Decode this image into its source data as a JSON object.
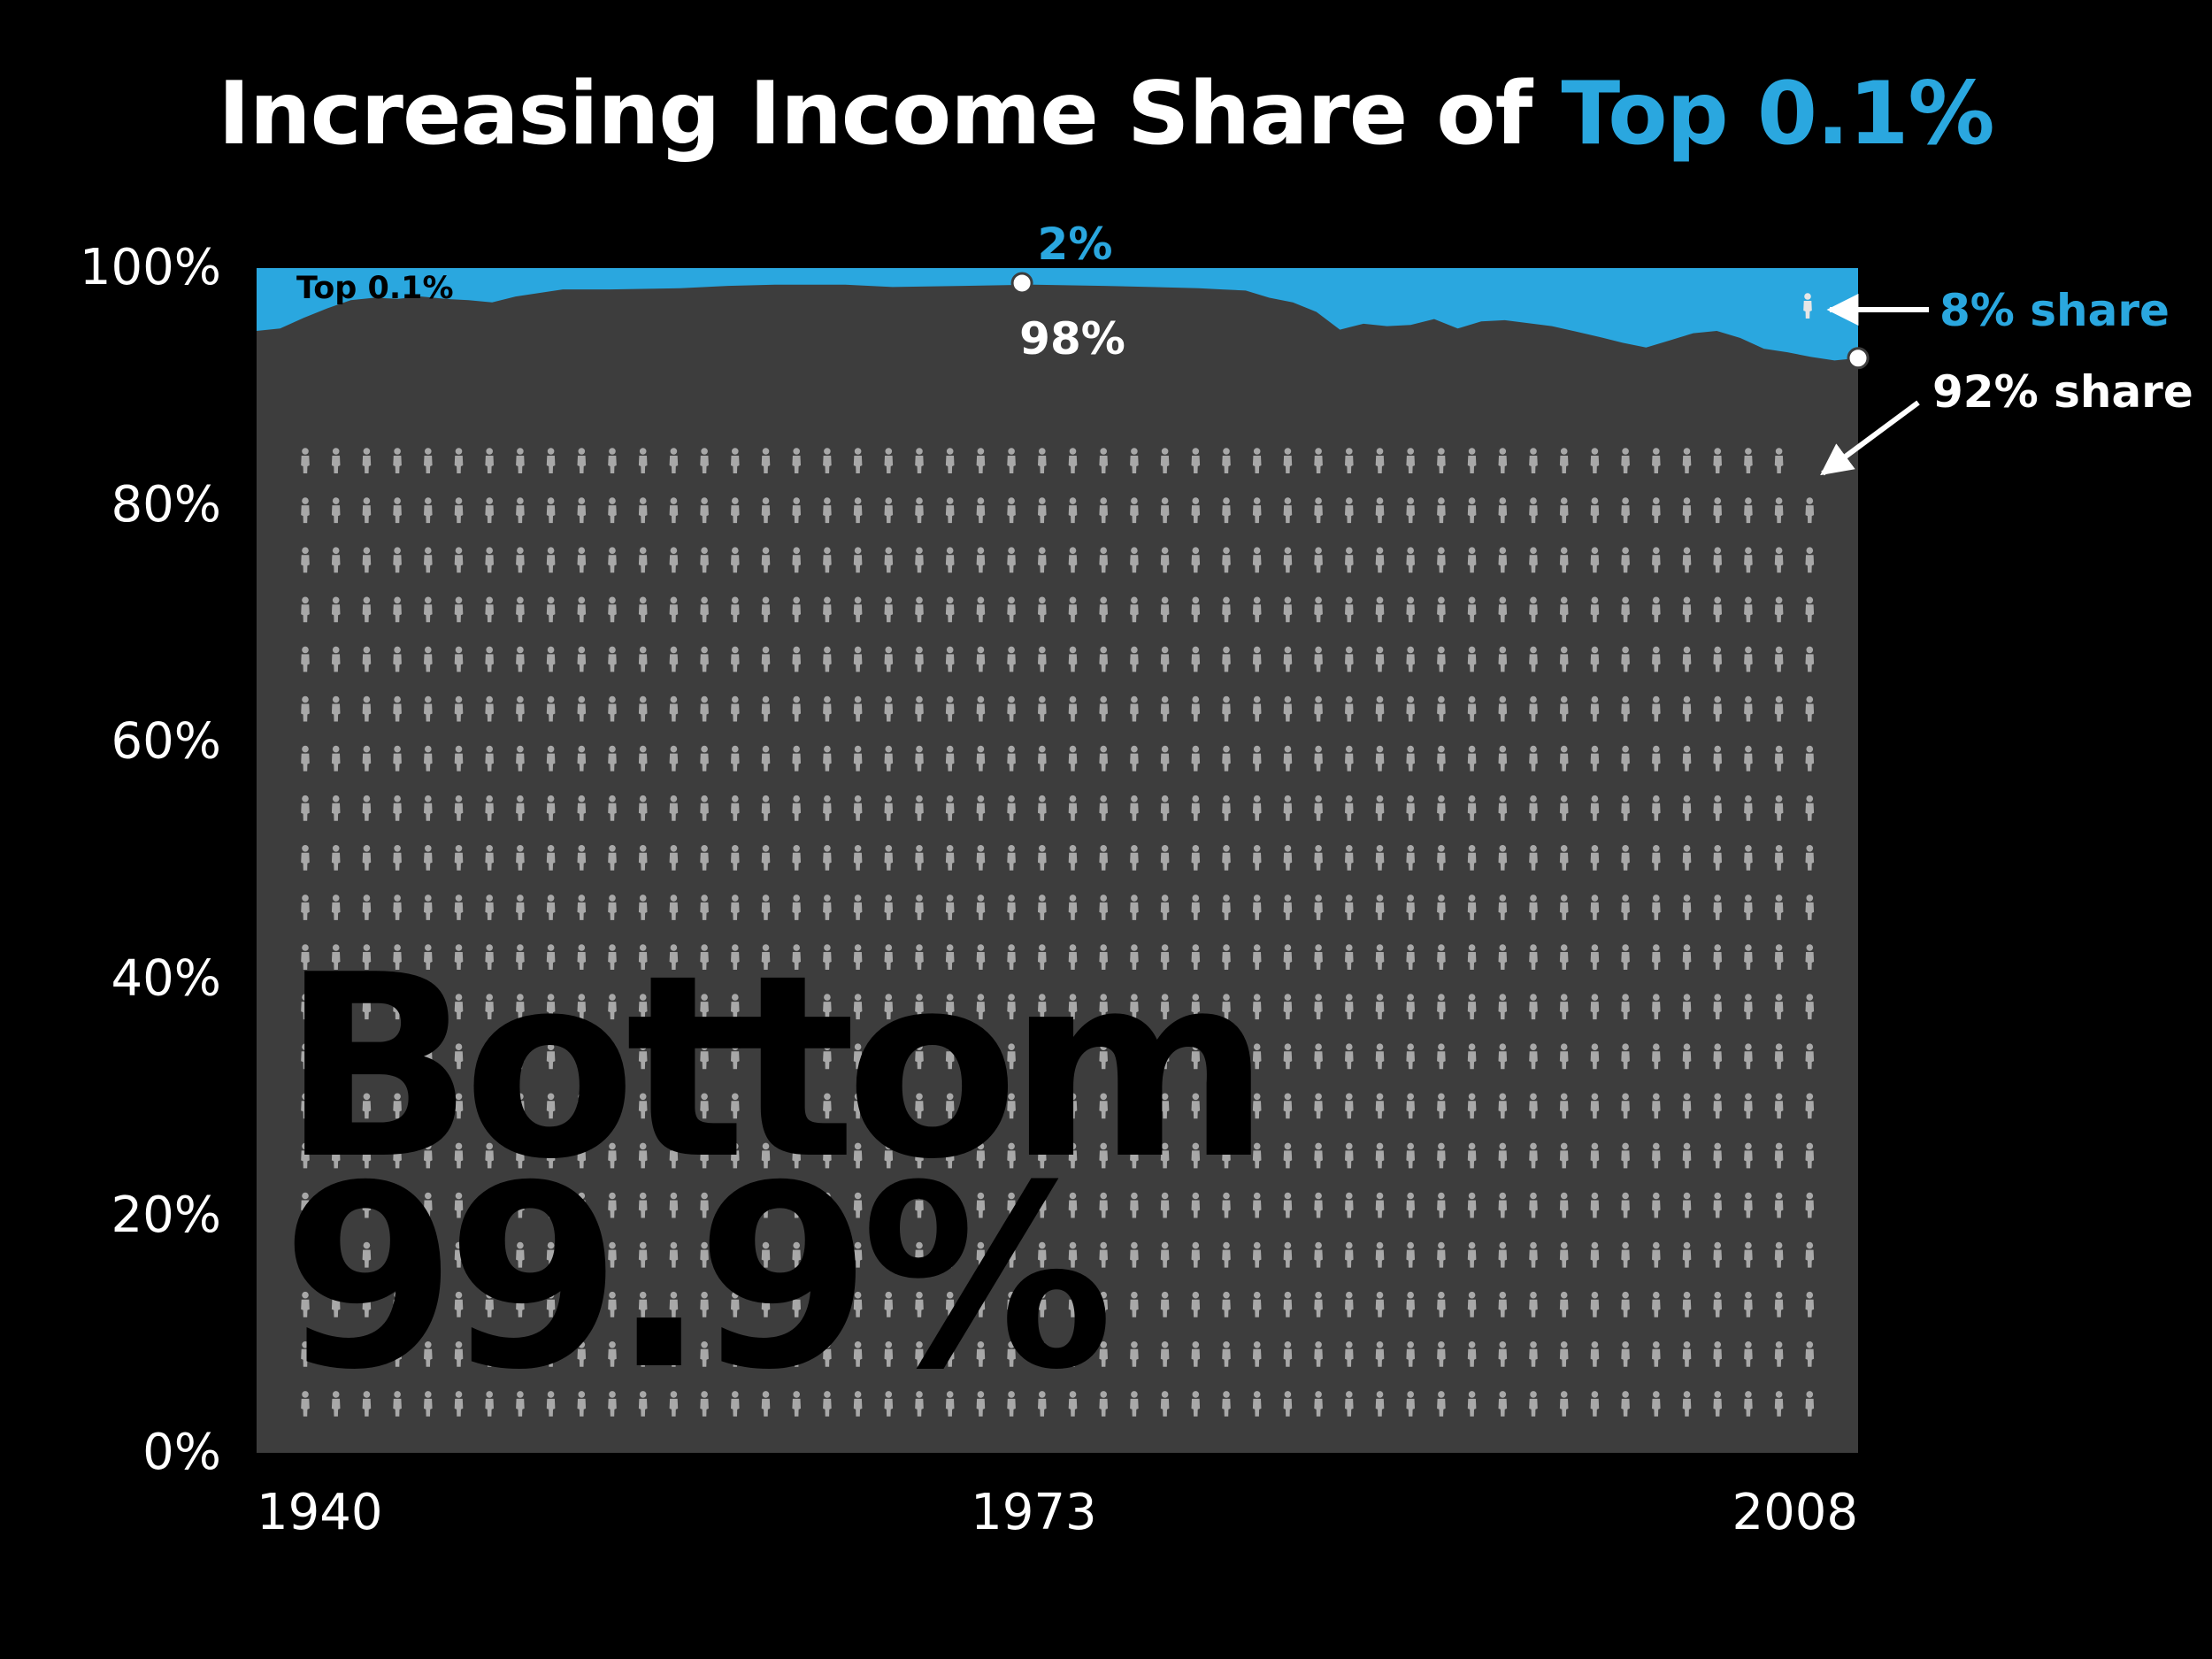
{
  "title": {
    "prefix": "Increasing Income Share of ",
    "highlight": "Top 0.1%"
  },
  "colors": {
    "background": "#000000",
    "top_area": "#2aa7df",
    "bottom_area": "#3d3d3d",
    "people_icon": "#a8a8a8",
    "big_label": "#000000",
    "annotation_white": "#ffffff",
    "annotation_blue": "#2aa7df"
  },
  "chart_data": {
    "type": "area",
    "title": "Increasing Income Share of Top 0.1%",
    "xlabel": "",
    "ylabel": "",
    "xlim": [
      1940,
      2008
    ],
    "ylim": [
      0,
      100
    ],
    "x_ticks": [
      "1940",
      "1973",
      "2008"
    ],
    "y_ticks": [
      "0%",
      "20%",
      "40%",
      "60%",
      "80%",
      "100%"
    ],
    "series": [
      {
        "name": "Bottom 99.9%",
        "x": [
          1940,
          1941,
          1942,
          1943,
          1944,
          1945,
          1946,
          1947,
          1948,
          1949,
          1950,
          1951,
          1952,
          1953,
          1955,
          1958,
          1960,
          1962,
          1965,
          1967,
          1970,
          1973,
          1976,
          1978,
          1980,
          1981,
          1982,
          1983,
          1984,
          1985,
          1986,
          1987,
          1988,
          1989,
          1990,
          1991,
          1992,
          1993,
          1995,
          1997,
          1998,
          1999,
          2000,
          2001,
          2002,
          2003,
          2004,
          2005,
          2006,
          2007,
          2008
        ],
        "values": [
          94.7,
          94.9,
          95.8,
          96.6,
          97.3,
          97.5,
          97.4,
          97.6,
          97.4,
          97.3,
          97.1,
          97.6,
          97.9,
          98.2,
          98.2,
          98.3,
          98.5,
          98.6,
          98.6,
          98.4,
          98.5,
          98.6,
          98.5,
          98.4,
          98.3,
          98.2,
          98.1,
          97.5,
          97.1,
          96.3,
          94.8,
          95.3,
          95.1,
          95.2,
          95.7,
          94.9,
          95.5,
          95.6,
          95.1,
          94.2,
          93.7,
          93.3,
          93.9,
          94.5,
          94.7,
          94.1,
          93.2,
          92.9,
          92.5,
          92.2,
          92.4
        ]
      },
      {
        "name": "Top 0.1%",
        "label_position": "top-left"
      }
    ],
    "annotations": {
      "label_1973_top": "2%",
      "label_1973_bottom": "98%",
      "label_2008_top": "8% share",
      "label_2008_bottom": "92% share"
    },
    "icon_grid": {
      "rows": 20,
      "cols": 50,
      "first_row_count": 49
    }
  },
  "labels": {
    "top_area": "Top 0.1%",
    "bottom_line1": "Bottom",
    "bottom_line2": "99.9%"
  }
}
